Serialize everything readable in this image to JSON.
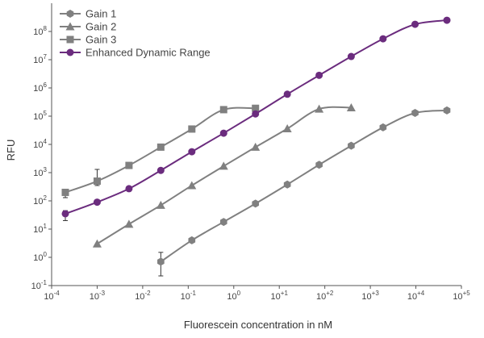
{
  "chart_data": {
    "type": "line",
    "xlabel": "Fluorescein concentration in nM",
    "ylabel": "RFU",
    "x_scale": "log",
    "y_scale": "log",
    "xlim": [
      0.0001,
      100000
    ],
    "ylim": [
      0.1,
      1000000000
    ],
    "x_ticks": [
      {
        "value": 0.0001,
        "base": "10",
        "exp": "-4"
      },
      {
        "value": 0.001,
        "base": "10",
        "exp": "-3"
      },
      {
        "value": 0.01,
        "base": "10",
        "exp": "-2"
      },
      {
        "value": 0.1,
        "base": "10",
        "exp": "-1"
      },
      {
        "value": 1,
        "base": "10",
        "exp": "0"
      },
      {
        "value": 10,
        "base": "10",
        "exp": "+1"
      },
      {
        "value": 100,
        "base": "10",
        "exp": "+2"
      },
      {
        "value": 1000,
        "base": "10",
        "exp": "+3"
      },
      {
        "value": 10000,
        "base": "10",
        "exp": "+4"
      },
      {
        "value": 100000,
        "base": "10",
        "exp": "+5"
      }
    ],
    "y_ticks": [
      {
        "value": 0.1,
        "base": "10",
        "exp": "-1"
      },
      {
        "value": 1,
        "base": "10",
        "exp": "0"
      },
      {
        "value": 10,
        "base": "10",
        "exp": "1"
      },
      {
        "value": 100,
        "base": "10",
        "exp": "2"
      },
      {
        "value": 1000,
        "base": "10",
        "exp": "3"
      },
      {
        "value": 10000,
        "base": "10",
        "exp": "4"
      },
      {
        "value": 100000,
        "base": "10",
        "exp": "5"
      },
      {
        "value": 1000000,
        "base": "10",
        "exp": "6"
      },
      {
        "value": 10000000,
        "base": "10",
        "exp": "7"
      },
      {
        "value": 100000000,
        "base": "10",
        "exp": "8"
      }
    ],
    "legend_position": "top-left",
    "series": [
      {
        "name": "Gain 1",
        "marker": "hexagon",
        "color": "#808080",
        "x": [
          0.025,
          0.12,
          0.6,
          3,
          15,
          75,
          380,
          1900,
          9600,
          48000
        ],
        "y": [
          0.7,
          4,
          18,
          80,
          380,
          1900,
          9000,
          40000,
          130000,
          160000
        ],
        "error_bars": [
          {
            "x": 0.025,
            "low": 0.22,
            "high": 1.5
          }
        ]
      },
      {
        "name": "Gain 2",
        "marker": "triangle",
        "color": "#808080",
        "x": [
          0.001,
          0.005,
          0.025,
          0.12,
          0.6,
          3,
          15,
          75,
          380
        ],
        "y": [
          3,
          15,
          70,
          350,
          1700,
          8000,
          36000,
          180000,
          200000
        ]
      },
      {
        "name": "Gain 3",
        "marker": "square",
        "color": "#808080",
        "x": [
          0.0002,
          0.001,
          0.005,
          0.025,
          0.12,
          0.6,
          3
        ],
        "y": [
          200,
          500,
          1800,
          8000,
          35000,
          170000,
          190000
        ],
        "error_bars": [
          {
            "x": 0.0002,
            "low": 130,
            "high": 250
          },
          {
            "x": 0.001,
            "low": 350,
            "high": 1300
          }
        ]
      },
      {
        "name": "Enhanced Dynamic Range",
        "marker": "circle",
        "color": "#6b2c7e",
        "x": [
          0.0002,
          0.001,
          0.005,
          0.025,
          0.12,
          0.6,
          3,
          15,
          75,
          380,
          1900,
          9600,
          48000
        ],
        "y": [
          35,
          90,
          270,
          1200,
          5500,
          25000,
          120000,
          600000,
          2800000,
          13000000,
          55000000,
          180000000,
          250000000
        ],
        "error_bars": [
          {
            "x": 0.0002,
            "low": 20,
            "high": 45
          }
        ]
      }
    ]
  }
}
